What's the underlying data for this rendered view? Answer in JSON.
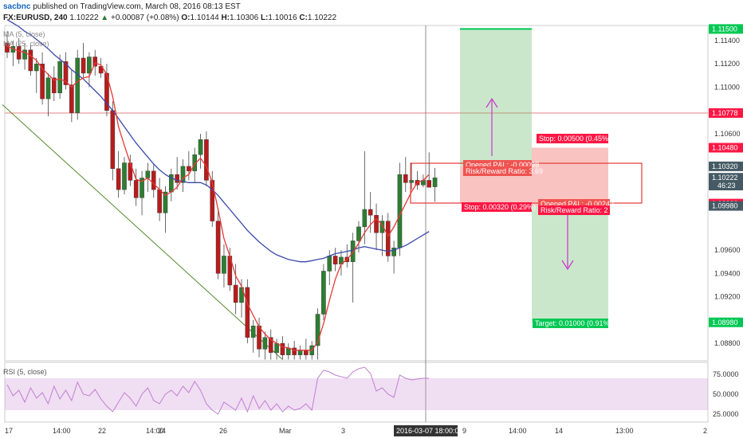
{
  "header": {
    "publisher": "sacbnc",
    "published_text": "published on TradingView.com, March 08, 2016 08:13 EST",
    "symbol": "FX:EURUSD, 240",
    "price": "1.10222",
    "change": "+0.00087 (+0.08%)",
    "open_label": "O:",
    "open": "1.10144",
    "high_label": "H:",
    "high": "1.10306",
    "low_label": "L:",
    "low": "1.10016",
    "close_label": "C:",
    "close": "1.10222",
    "ma_legend_1": "MA (5, close)",
    "ma_legend_2": "MA (25, close)"
  },
  "colors": {
    "up": "#2e7d32",
    "down": "#b71c1c",
    "ma_fast": "#e53935",
    "ma_slow": "#3949ab",
    "trend": "#558b2f",
    "rsi": "#c080d0",
    "long_green": "#66bb6a",
    "stop_red": "#ef5350",
    "arrow": "#cc33cc",
    "target_tag": "#00c853",
    "stop_tag": "#ff1744"
  },
  "chart_data": {
    "type": "candlestick",
    "y_range": [
      1.0865,
      1.1153
    ],
    "y_ticks": [
      "1.11400",
      "1.11200",
      "1.11000",
      "1.10600",
      "1.09600",
      "1.09400",
      "1.09200",
      "1.08800"
    ],
    "x_ticks": [
      "17",
      "14:00",
      "22",
      "14:00",
      "24",
      "26",
      "Mar",
      "3",
      "9",
      "14:00",
      "14",
      "13:00",
      "2"
    ],
    "crosshair_time": "2016-03-07 18:00:00",
    "crosshair_price": "46:23",
    "price_tags": [
      {
        "value": 1.115,
        "text": "1.11500",
        "color": "#00c853"
      },
      {
        "value": 1.10778,
        "text": "1.10778",
        "color": "#ff1744"
      },
      {
        "value": 1.1048,
        "text": "1.10480",
        "color": "#ff1744"
      },
      {
        "value": 1.1032,
        "text": "1.10320",
        "color": "#455a64"
      },
      {
        "value": 1.10222,
        "text": "1.10222",
        "color": "#455a64"
      },
      {
        "value": 1.1,
        "text": "1.10000",
        "color": "#ff1744"
      },
      {
        "value": 1.0998,
        "text": "1.09980",
        "color": "#455a64"
      },
      {
        "value": 1.0898,
        "text": "1.08980",
        "color": "#00c853"
      }
    ],
    "horizontal_line": 1.10778,
    "candles": [
      [
        1.1138,
        1.1148,
        1.1125,
        1.113
      ],
      [
        1.113,
        1.114,
        1.1118,
        1.1135
      ],
      [
        1.1135,
        1.1142,
        1.112,
        1.1124
      ],
      [
        1.1124,
        1.1138,
        1.1115,
        1.1132
      ],
      [
        1.1132,
        1.1136,
        1.111,
        1.1114
      ],
      [
        1.1114,
        1.1125,
        1.1095,
        1.112
      ],
      [
        1.112,
        1.113,
        1.1085,
        1.109
      ],
      [
        1.109,
        1.1112,
        1.1075,
        1.1108
      ],
      [
        1.1108,
        1.1118,
        1.1088,
        1.1095
      ],
      [
        1.1095,
        1.1128,
        1.109,
        1.1122
      ],
      [
        1.1122,
        1.113,
        1.1098,
        1.1102
      ],
      [
        1.1102,
        1.1115,
        1.107,
        1.1078
      ],
      [
        1.1078,
        1.1132,
        1.1072,
        1.1125
      ],
      [
        1.1125,
        1.1138,
        1.1108,
        1.1112
      ],
      [
        1.1112,
        1.113,
        1.11,
        1.1126
      ],
      [
        1.1126,
        1.1132,
        1.111,
        1.1118
      ],
      [
        1.1118,
        1.1125,
        1.1108,
        1.1112
      ],
      [
        1.1112,
        1.112,
        1.1075,
        1.108
      ],
      [
        1.108,
        1.1088,
        1.102,
        1.103
      ],
      [
        1.103,
        1.1045,
        1.1005,
        1.1012
      ],
      [
        1.1012,
        1.104,
        1.1008,
        1.1035
      ],
      [
        1.1035,
        1.1042,
        1.1015,
        1.102
      ],
      [
        1.102,
        1.103,
        1.0998,
        1.1005
      ],
      [
        1.1005,
        1.1028,
        1.099,
        1.1022
      ],
      [
        1.1022,
        1.1035,
        1.101,
        1.1028
      ],
      [
        1.1028,
        1.1034,
        1.1005,
        1.1012
      ],
      [
        1.1012,
        1.1022,
        1.0985,
        1.0992
      ],
      [
        1.0992,
        1.1015,
        1.0975,
        1.101
      ],
      [
        1.101,
        1.103,
        1.1002,
        1.1025
      ],
      [
        1.1025,
        1.104,
        1.1012,
        1.1018
      ],
      [
        1.1018,
        1.1038,
        1.101,
        1.1032
      ],
      [
        1.1032,
        1.1045,
        1.102,
        1.1028
      ],
      [
        1.1028,
        1.1048,
        1.1018,
        1.1042
      ],
      [
        1.1042,
        1.106,
        1.103,
        1.1055
      ],
      [
        1.1055,
        1.1062,
        1.1015,
        1.102
      ],
      [
        1.102,
        1.1028,
        1.098,
        1.0985
      ],
      [
        1.0985,
        1.0995,
        1.0935,
        1.094
      ],
      [
        1.094,
        1.0965,
        1.0928,
        1.0955
      ],
      [
        1.0955,
        1.0962,
        1.0925,
        1.093
      ],
      [
        1.093,
        1.0948,
        1.0905,
        1.0915
      ],
      [
        1.0915,
        1.0935,
        1.0902,
        1.0928
      ],
      [
        1.0928,
        1.0935,
        1.088,
        1.0885
      ],
      [
        1.0885,
        1.09,
        1.0872,
        1.0895
      ],
      [
        1.0895,
        1.0902,
        1.0868,
        1.0875
      ],
      [
        1.0875,
        1.089,
        1.0866,
        1.0885
      ],
      [
        1.0885,
        1.0892,
        1.0866,
        1.0872
      ],
      [
        1.0872,
        1.0884,
        1.0866,
        1.088
      ],
      [
        1.088,
        1.0886,
        1.0866,
        1.087
      ],
      [
        1.087,
        1.088,
        1.0866,
        1.0876
      ],
      [
        1.0876,
        1.0882,
        1.0866,
        1.087
      ],
      [
        1.087,
        1.0878,
        1.0866,
        1.0874
      ],
      [
        1.0874,
        1.0884,
        1.0866,
        1.087
      ],
      [
        1.087,
        1.0882,
        1.0866,
        1.0878
      ],
      [
        1.0878,
        1.091,
        1.0866,
        1.0905
      ],
      [
        1.0905,
        1.0948,
        1.09,
        1.0942
      ],
      [
        1.0942,
        1.096,
        1.093,
        1.0955
      ],
      [
        1.0955,
        1.0962,
        1.0942,
        1.0948
      ],
      [
        1.0948,
        1.096,
        1.0938,
        1.0954
      ],
      [
        1.0954,
        1.0965,
        1.0945,
        1.095
      ],
      [
        1.095,
        1.0975,
        1.0915,
        1.0968
      ],
      [
        1.0968,
        1.0985,
        1.0958,
        1.098
      ],
      [
        1.098,
        1.1045,
        1.0965,
        1.0995
      ],
      [
        1.0995,
        1.101,
        1.0975,
        1.099
      ],
      [
        1.099,
        1.1,
        1.096,
        1.0975
      ],
      [
        1.0975,
        1.099,
        1.0955,
        1.0985
      ],
      [
        1.0985,
        1.0992,
        1.095,
        1.0955
      ],
      [
        1.0955,
        1.0968,
        1.094,
        1.0962
      ],
      [
        1.0962,
        1.1035,
        1.0955,
        1.1025
      ],
      [
        1.1025,
        1.104,
        1.101,
        1.1018
      ],
      [
        1.1018,
        1.1035,
        1.1012,
        1.102
      ],
      [
        1.102,
        1.1028,
        1.1012,
        1.1016
      ],
      [
        1.1016,
        1.1025,
        1.1014,
        1.102
      ],
      [
        1.102,
        1.1044,
        1.1015,
        1.1014
      ],
      [
        1.10144,
        1.10306,
        1.10016,
        1.10222
      ]
    ],
    "ma_fast": [
      1.1135,
      1.1133,
      1.1131,
      1.113,
      1.1127,
      1.1123,
      1.1116,
      1.1111,
      1.1106,
      1.1107,
      1.1105,
      1.11,
      1.1105,
      1.1108,
      1.1109,
      1.1121,
      1.1119,
      1.1111,
      1.1092,
      1.1066,
      1.105,
      1.1035,
      1.1021,
      1.1019,
      1.1022,
      1.1017,
      1.1012,
      1.1007,
      1.101,
      1.1014,
      1.1022,
      1.1025,
      1.1034,
      1.1039,
      1.1032,
      1.1018,
      1.0995,
      1.097,
      1.0955,
      1.0938,
      1.0929,
      1.0914,
      1.0904,
      1.0894,
      1.0888,
      1.0883,
      1.088,
      1.0877,
      1.0876,
      1.0874,
      1.0874,
      1.0874,
      1.0874,
      1.0881,
      1.0897,
      1.0917,
      1.0935,
      1.0948,
      1.0952,
      1.0958,
      1.0966,
      1.0975,
      1.0982,
      1.0987,
      1.0982,
      1.0972,
      1.098,
      1.099,
      1.1,
      1.101,
      1.1018,
      1.102,
      1.1025
    ],
    "ma_slow": [
      1.1158,
      1.1155,
      1.1152,
      1.1148,
      1.1145,
      1.1141,
      1.1137,
      1.1133,
      1.1128,
      1.1124,
      1.112,
      1.1115,
      1.1111,
      1.1107,
      1.1102,
      1.1097,
      1.1092,
      1.1086,
      1.108,
      1.1073,
      1.1066,
      1.1059,
      1.1052,
      1.1046,
      1.104,
      1.1034,
      1.1029,
      1.1025,
      1.1022,
      1.102,
      1.1019,
      1.1018,
      1.1018,
      1.1018,
      1.1016,
      1.1012,
      1.1007,
      1.1001,
      1.0995,
      1.0989,
      1.0983,
      1.0977,
      1.0972,
      1.0967,
      1.0963,
      1.0959,
      1.0956,
      1.0954,
      1.0952,
      1.0951,
      1.095,
      1.095,
      1.0951,
      1.0952,
      1.0953,
      1.0955,
      1.0957,
      1.0958,
      1.0959,
      1.096,
      1.0962,
      1.0963,
      1.0962,
      1.0961,
      1.096,
      1.0959,
      1.096,
      1.0962,
      1.0964,
      1.0967,
      1.097,
      1.0973,
      1.0976
    ],
    "trend_line": [
      [
        0,
        1.1085
      ],
      [
        47,
        1.0866
      ]
    ],
    "long_position": {
      "entry": 1.1032,
      "stop": 1.1,
      "target": 1.115,
      "opened_pl": "Opened P&L: -0.00098",
      "risk_reward": "Risk/Reward Ratio: 3.69",
      "stop_label": "Stop: 0.00320 (0.29%)"
    },
    "short_position": {
      "entry": 1.0998,
      "stop": 1.1048,
      "target": 1.0898,
      "opened_pl": "Opened P&L: -0.00242",
      "risk_reward": "Risk/Reward Ratio: 2",
      "stop_label": "Stop: 0.00500 (0.45%)",
      "target_label": "Target: 0.01000 (0.91%)"
    },
    "rsi": {
      "legend": "RSI (5, close)",
      "y_range": [
        15,
        90
      ],
      "ticks": [
        "75.0000",
        "50.0000",
        "25.0000"
      ],
      "band": [
        30,
        70
      ],
      "values": [
        62,
        48,
        55,
        40,
        58,
        45,
        52,
        38,
        60,
        44,
        55,
        42,
        65,
        50,
        48,
        56,
        44,
        35,
        28,
        40,
        52,
        45,
        35,
        50,
        58,
        42,
        38,
        50,
        55,
        48,
        60,
        52,
        66,
        55,
        38,
        30,
        25,
        40,
        35,
        30,
        45,
        28,
        48,
        32,
        42,
        30,
        38,
        28,
        35,
        30,
        32,
        38,
        30,
        70,
        80,
        78,
        74,
        72,
        70,
        78,
        82,
        84,
        76,
        54,
        58,
        50,
        46,
        74,
        70,
        68,
        69,
        70,
        70
      ]
    }
  }
}
